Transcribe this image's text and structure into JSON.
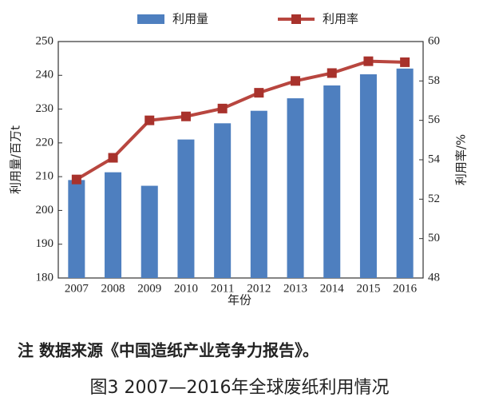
{
  "chart_data": {
    "type": "bar",
    "categories": [
      "2007",
      "2008",
      "2009",
      "2010",
      "2011",
      "2012",
      "2013",
      "2014",
      "2015",
      "2016"
    ],
    "series": [
      {
        "name": "利用量",
        "type": "bar",
        "color": "#4e7fbf",
        "values": [
          209,
          211.3,
          207.3,
          221,
          225.8,
          229.5,
          233.2,
          237,
          240.3,
          242
        ]
      },
      {
        "name": "利用率",
        "type": "line",
        "axis": "y2",
        "color": "#b8463f",
        "values": [
          53.0,
          54.1,
          56.0,
          56.2,
          56.6,
          57.4,
          58.0,
          58.4,
          59.0,
          58.95
        ]
      }
    ],
    "xlabel": "年份",
    "ylabel": "利用量/百万t",
    "y2label": "利用率/%",
    "ylim": [
      180,
      250
    ],
    "yticks": [
      180,
      190,
      200,
      210,
      220,
      230,
      240,
      250
    ],
    "y2lim": [
      48,
      60
    ],
    "y2ticks": [
      48,
      50,
      52,
      54,
      56,
      58,
      60
    ],
    "grid": false,
    "note": "注  数据来源《中国造纸产业竞争力报告》。",
    "caption": "图3  2007—2016年全球废纸利用情况"
  }
}
